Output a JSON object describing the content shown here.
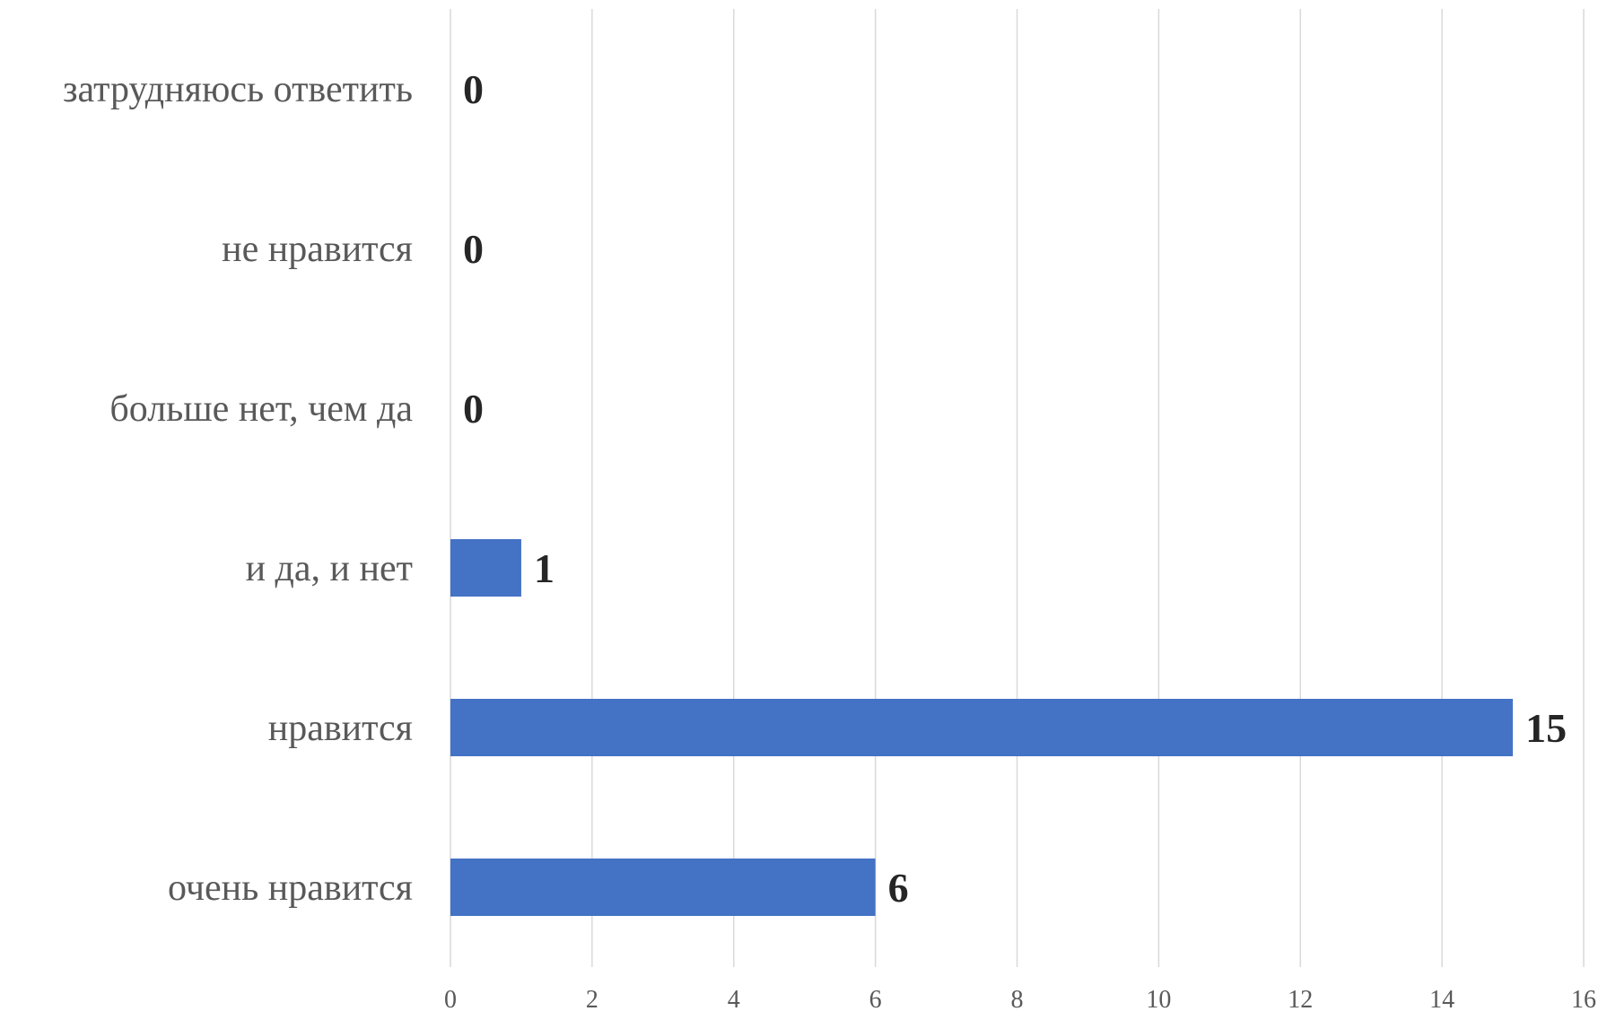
{
  "chart_data": {
    "type": "bar",
    "orientation": "horizontal",
    "title": "",
    "xlabel": "",
    "ylabel": "",
    "categories": [
      "очень нравится",
      "нравится",
      "и да, и нет",
      "больше нет, чем да",
      "не нравится",
      "затрудняюсь ответить"
    ],
    "values": [
      6,
      15,
      1,
      0,
      0,
      0
    ],
    "xlim": [
      0,
      16
    ],
    "xticks": [
      0,
      2,
      4,
      6,
      8,
      10,
      12,
      14,
      16
    ],
    "grid": true,
    "legend": "none",
    "bar_color": "#4472c4",
    "data_labels": true
  }
}
